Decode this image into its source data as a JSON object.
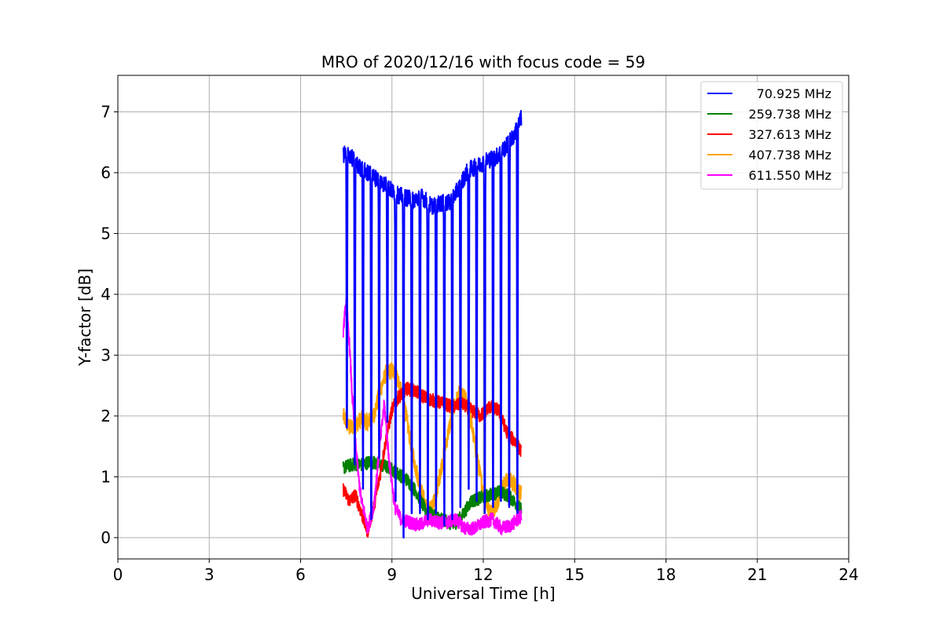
{
  "chart_data": {
    "type": "line",
    "title": "MRO of 2020/12/16 with focus code = 59",
    "xlabel": "Universal Time [h]",
    "ylabel": "Y-factor [dB]",
    "xlim": [
      0,
      24
    ],
    "ylim": [
      -0.35,
      7.6
    ],
    "xticks": [
      0,
      3,
      6,
      9,
      12,
      15,
      18,
      21,
      24
    ],
    "yticks": [
      0,
      1,
      2,
      3,
      4,
      5,
      6,
      7
    ],
    "grid": true,
    "legend_position": "top-right",
    "series": [
      {
        "name": "70.925 MHz",
        "color": "#0000ff",
        "x": [
          7.4,
          7.6,
          7.9,
          8.2,
          8.5,
          8.8,
          9.1,
          9.4,
          9.7,
          10.0,
          10.3,
          10.6,
          10.9,
          11.2,
          11.5,
          11.8,
          12.1,
          12.4,
          12.7,
          13.0,
          13.25
        ],
        "y": [
          6.3,
          6.3,
          6.1,
          6.0,
          5.9,
          5.8,
          5.65,
          5.6,
          5.55,
          5.6,
          5.45,
          5.5,
          5.5,
          5.75,
          6.05,
          6.1,
          6.2,
          6.25,
          6.4,
          6.6,
          6.9
        ],
        "dips": [
          7.52,
          7.78,
          8.05,
          8.32,
          8.58,
          8.85,
          9.12,
          9.38,
          9.65,
          9.92,
          10.18,
          10.45,
          10.72,
          10.98,
          11.25,
          11.52,
          11.78,
          12.05,
          12.32,
          12.58,
          12.85,
          13.12
        ],
        "dip_min": [
          1.8,
          1.2,
          0.8,
          0.3,
          1.3,
          1.9,
          0.6,
          0.0,
          0.4,
          0.4,
          0.3,
          0.4,
          0.2,
          0.3,
          0.5,
          0.8,
          0.6,
          0.4,
          0.5,
          0.6,
          0.5,
          0.4
        ]
      },
      {
        "name": "259.738 MHz",
        "color": "#008000",
        "x": [
          7.4,
          7.7,
          8.0,
          8.3,
          8.6,
          8.9,
          9.2,
          9.5,
          9.8,
          10.1,
          10.4,
          10.7,
          11.0,
          11.3,
          11.6,
          11.9,
          12.2,
          12.5,
          12.8,
          13.1,
          13.25
        ],
        "y": [
          1.15,
          1.2,
          1.2,
          1.25,
          1.2,
          1.15,
          1.05,
          0.95,
          0.75,
          0.45,
          0.35,
          0.3,
          0.2,
          0.35,
          0.6,
          0.65,
          0.7,
          0.75,
          0.7,
          0.55,
          0.45
        ]
      },
      {
        "name": "327.613 MHz",
        "color": "#ff0000",
        "x": [
          7.4,
          7.6,
          7.8,
          8.0,
          8.2,
          8.4,
          8.6,
          8.8,
          9.0,
          9.2,
          9.5,
          9.8,
          10.1,
          10.4,
          10.7,
          11.0,
          11.3,
          11.6,
          11.9,
          12.2,
          12.5,
          12.8,
          13.1,
          13.25
        ],
        "y": [
          0.8,
          0.6,
          0.7,
          0.4,
          0.1,
          0.5,
          1.0,
          1.6,
          2.1,
          2.3,
          2.45,
          2.4,
          2.3,
          2.25,
          2.2,
          2.15,
          2.2,
          2.1,
          2.0,
          2.15,
          2.1,
          1.7,
          1.55,
          1.4
        ]
      },
      {
        "name": "407.738 MHz",
        "color": "#ffa500",
        "x": [
          7.4,
          7.6,
          7.8,
          8.0,
          8.2,
          8.4,
          8.6,
          8.8,
          9.0,
          9.2,
          9.4,
          9.6,
          9.8,
          10.0,
          10.2,
          10.4,
          10.6,
          10.8,
          11.0,
          11.2,
          11.4,
          11.6,
          11.8,
          12.0,
          12.2,
          12.4,
          12.6,
          12.8,
          13.0,
          13.25
        ],
        "y": [
          2.0,
          1.8,
          1.85,
          1.95,
          1.9,
          2.0,
          2.4,
          2.7,
          2.75,
          2.6,
          2.2,
          1.6,
          1.1,
          0.7,
          0.4,
          0.6,
          1.1,
          1.6,
          2.1,
          2.35,
          2.3,
          1.9,
          1.3,
          0.75,
          0.4,
          0.5,
          0.8,
          0.95,
          0.9,
          0.7
        ]
      },
      {
        "name": "611.550 MHz",
        "color": "#ff00ff",
        "x": [
          7.4,
          7.5,
          7.6,
          7.7,
          7.8,
          7.9,
          8.0,
          8.1,
          8.2,
          8.4,
          8.6,
          8.75,
          8.9,
          9.1,
          9.3,
          9.6,
          9.9,
          10.2,
          10.5,
          10.8,
          11.1,
          11.4,
          11.7,
          12.0,
          12.3,
          12.6,
          12.9,
          13.25
        ],
        "y": [
          3.4,
          3.9,
          3.2,
          2.3,
          1.6,
          1.0,
          0.6,
          0.4,
          0.15,
          0.5,
          1.5,
          2.2,
          1.3,
          0.5,
          0.3,
          0.25,
          0.2,
          0.3,
          0.25,
          0.25,
          0.3,
          0.15,
          0.15,
          0.25,
          0.3,
          0.15,
          0.2,
          0.35
        ]
      }
    ]
  }
}
